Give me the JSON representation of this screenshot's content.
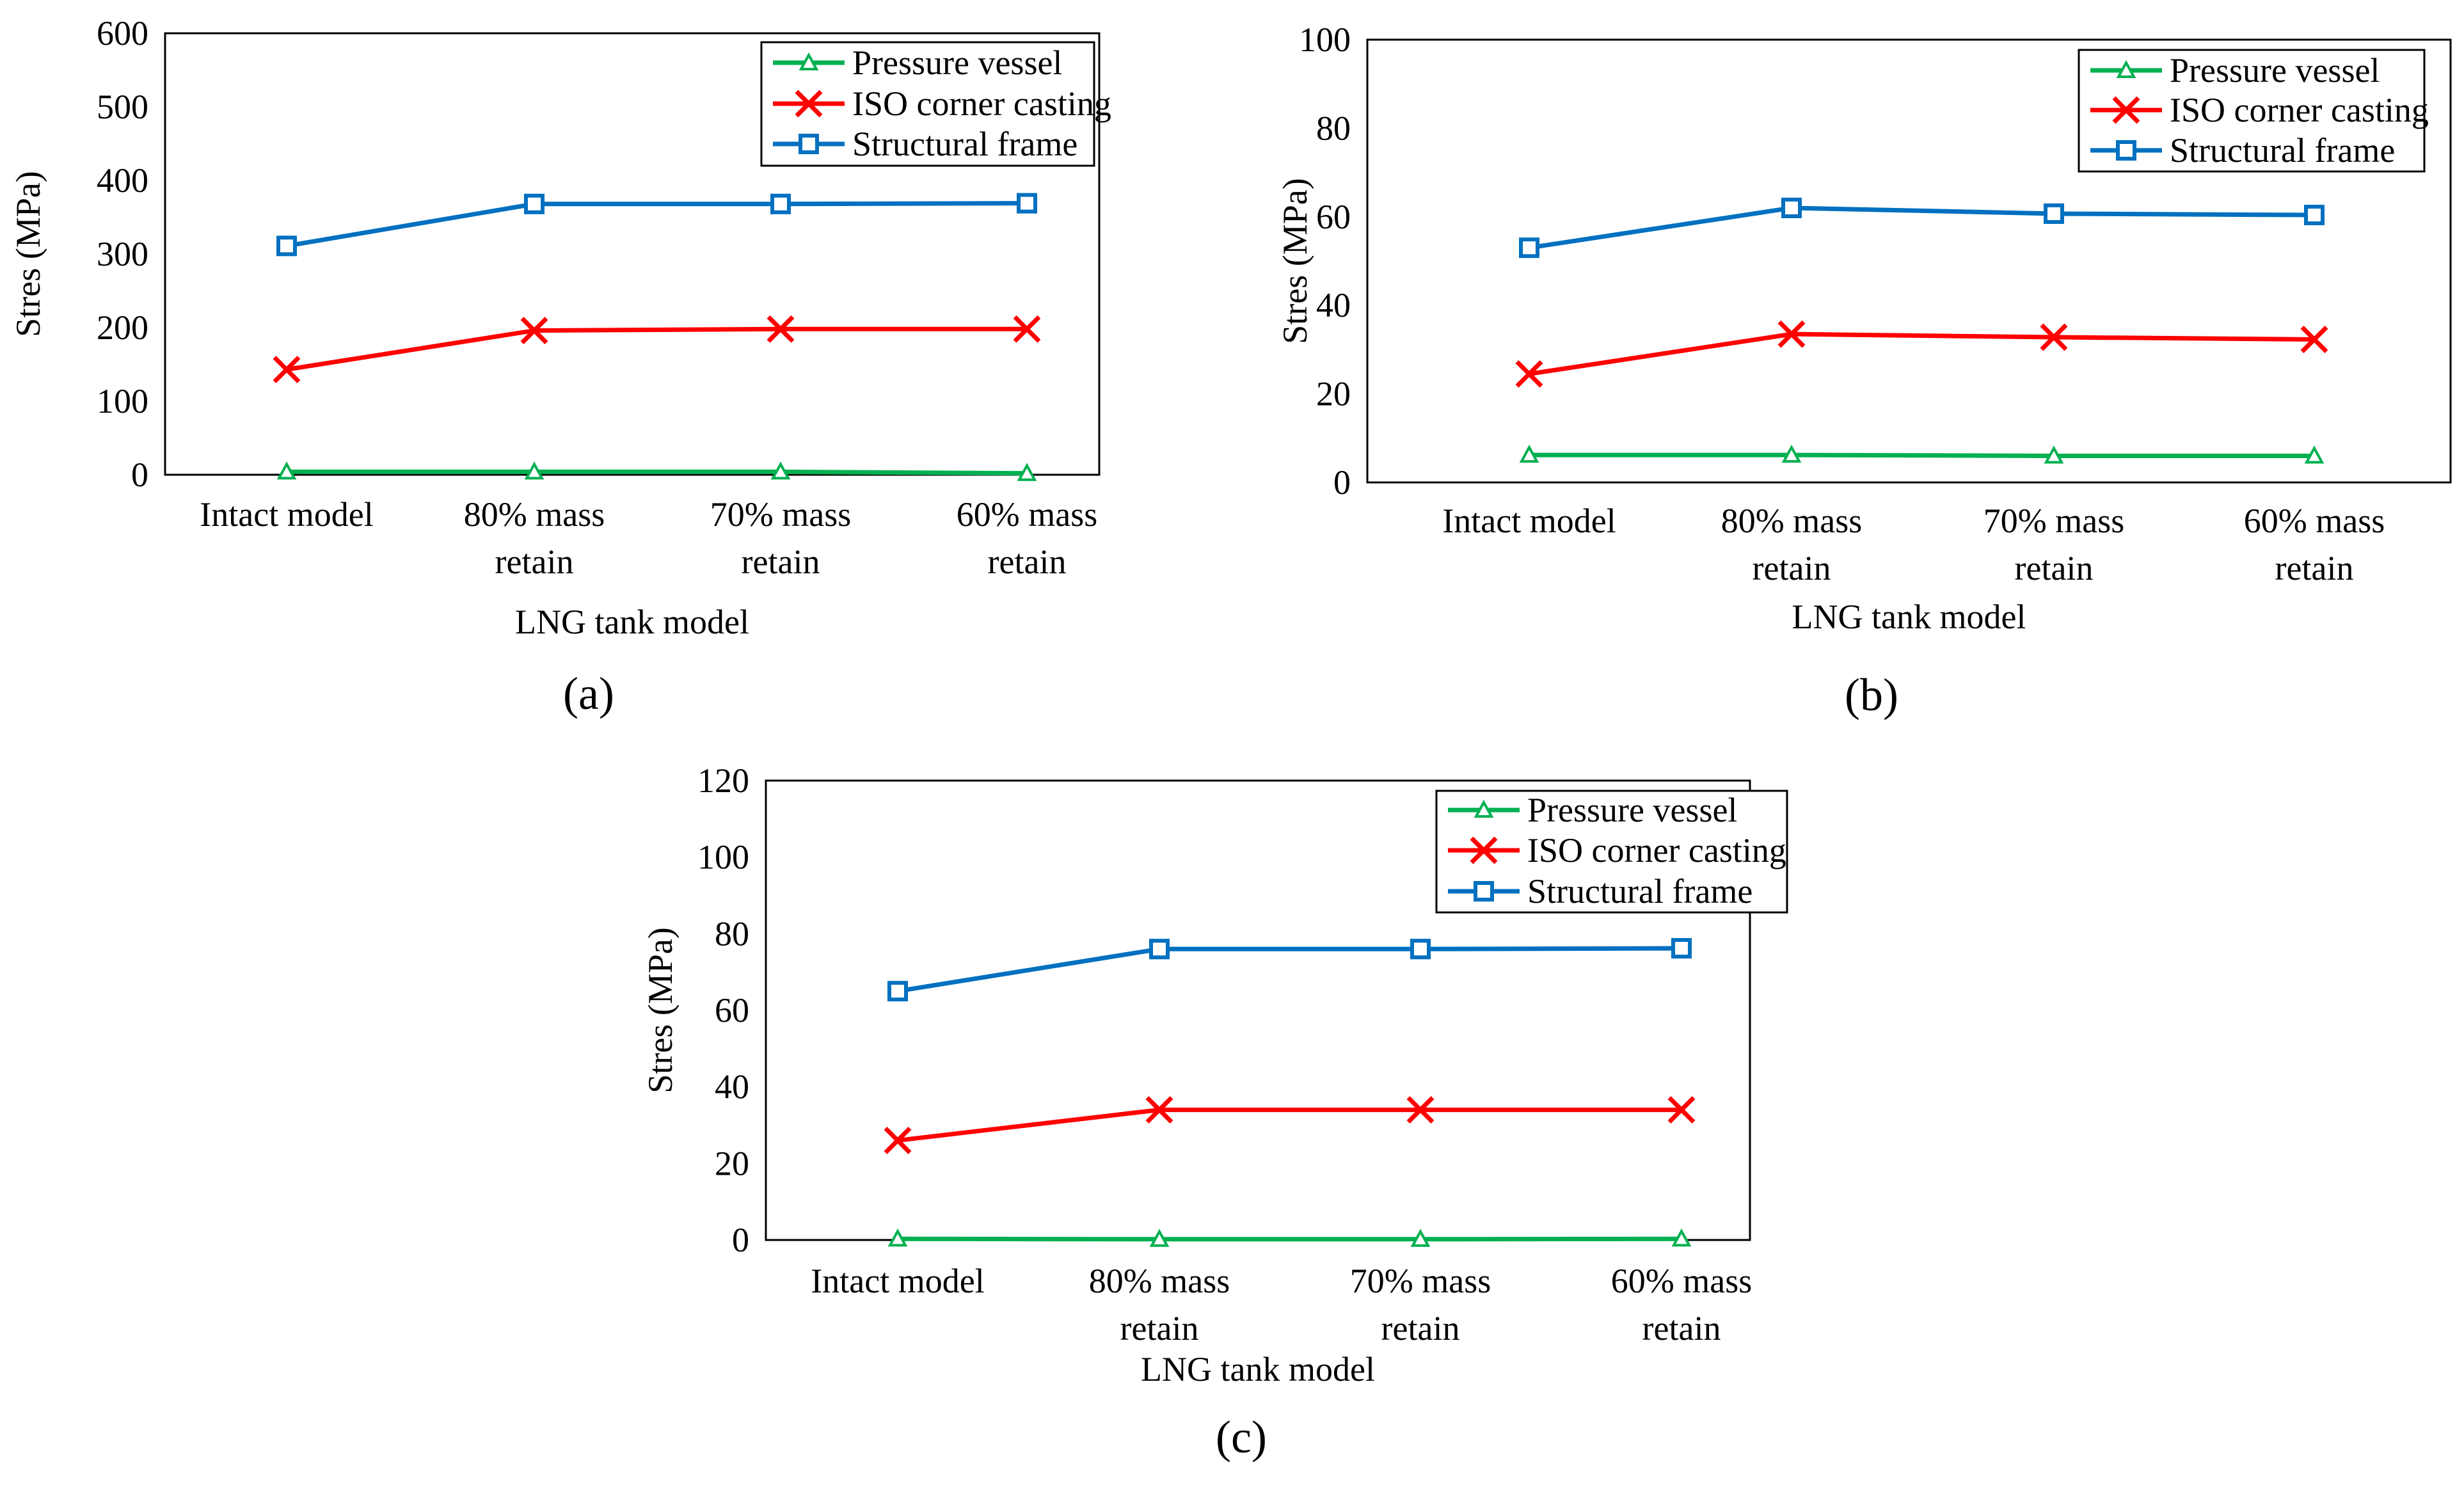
{
  "chart_data": [
    {
      "panel_label": "(a)",
      "type": "line",
      "title": "",
      "xlabel": "LNG tank model",
      "ylabel": "Stres (MPa)",
      "ylim": [
        0,
        600
      ],
      "yticks": [
        0,
        100,
        200,
        300,
        400,
        500,
        600
      ],
      "grid": false,
      "legend_position": "top-right",
      "categories": [
        [
          "Intact model"
        ],
        [
          "80% mass",
          "retain"
        ],
        [
          "70% mass",
          "retain"
        ],
        [
          "60% mass",
          "retain"
        ]
      ],
      "series": [
        {
          "name": "Pressure vessel",
          "color": "#00b050",
          "marker": "triangle",
          "values": [
            4,
            4,
            4,
            2
          ]
        },
        {
          "name": "ISO corner casting",
          "color": "#ff0000",
          "marker": "x",
          "values": [
            143,
            196,
            198,
            198
          ]
        },
        {
          "name": "Structural frame",
          "color": "#0070c0",
          "marker": "square",
          "values": [
            311,
            368,
            368,
            369
          ]
        }
      ]
    },
    {
      "panel_label": "(b)",
      "type": "line",
      "title": "",
      "xlabel": "LNG tank model",
      "ylabel": "Stres (MPa)",
      "ylim": [
        0,
        100
      ],
      "yticks": [
        0,
        20,
        40,
        60,
        80,
        100
      ],
      "grid": false,
      "legend_position": "top-right",
      "categories": [
        [
          "Intact model"
        ],
        [
          "80% mass",
          "retain"
        ],
        [
          "70% mass",
          "retain"
        ],
        [
          "60% mass",
          "retain"
        ]
      ],
      "series": [
        {
          "name": "Pressure vessel",
          "color": "#00b050",
          "marker": "triangle",
          "values": [
            6.2,
            6.2,
            6.0,
            6.0
          ]
        },
        {
          "name": "ISO corner casting",
          "color": "#ff0000",
          "marker": "x",
          "values": [
            24.5,
            33.5,
            32.8,
            32.3
          ]
        },
        {
          "name": "Structural frame",
          "color": "#0070c0",
          "marker": "square",
          "values": [
            53,
            62,
            60.7,
            60.4
          ]
        }
      ]
    },
    {
      "panel_label": "(c)",
      "type": "line",
      "title": "",
      "xlabel": "LNG tank model",
      "ylabel": "Stres (MPa)",
      "ylim": [
        0,
        120
      ],
      "yticks": [
        0,
        20,
        40,
        60,
        80,
        100,
        120
      ],
      "grid": false,
      "legend_position": "top-right",
      "categories": [
        [
          "Intact model"
        ],
        [
          "80% mass",
          "retain"
        ],
        [
          "70% mass",
          "retain"
        ],
        [
          "60% mass",
          "retain"
        ]
      ],
      "series": [
        {
          "name": "Pressure vessel",
          "color": "#00b050",
          "marker": "triangle",
          "values": [
            0.3,
            0.2,
            0.2,
            0.3
          ]
        },
        {
          "name": "ISO corner casting",
          "color": "#ff0000",
          "marker": "x",
          "values": [
            26,
            34,
            34,
            34
          ]
        },
        {
          "name": "Structural frame",
          "color": "#0070c0",
          "marker": "square",
          "values": [
            65,
            76,
            76,
            76.2
          ]
        }
      ]
    }
  ]
}
